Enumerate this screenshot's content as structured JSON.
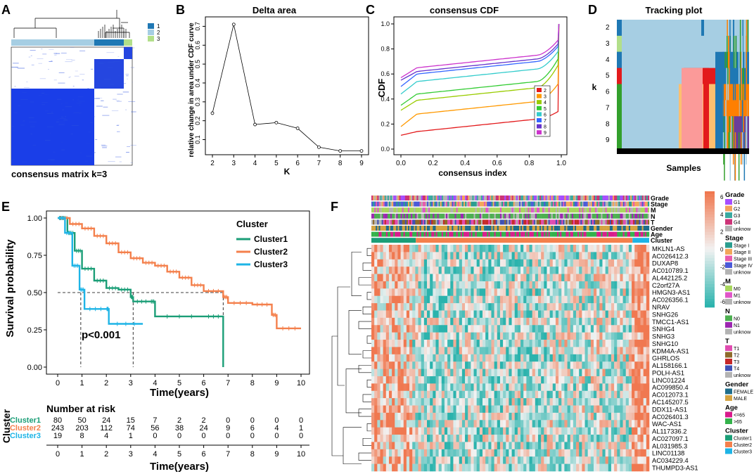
{
  "panel_labels": [
    "A",
    "B",
    "C",
    "D",
    "E",
    "F"
  ],
  "colors": {
    "k1": "#1f78b4",
    "k2": "#a6cee3",
    "k3": "#b2df8a",
    "c1": "#1b9e77",
    "c2": "#f4804c",
    "c3": "#1eb4e6",
    "heat_low": "#2bb3ad",
    "heat_mid": "#f2f2f2",
    "heat_high": "#f07850"
  },
  "panelA": {
    "caption": "consensus matrix k=3",
    "legend": [
      "1",
      "2",
      "3"
    ]
  },
  "chart_data": [
    {
      "id": "B",
      "type": "line",
      "title": "Delta area",
      "xlabel": "K",
      "ylabel": "relative change in area under CDF curve",
      "x": [
        2,
        3,
        4,
        5,
        6,
        7,
        8,
        9
      ],
      "y": [
        0.24,
        0.71,
        0.18,
        0.19,
        0.16,
        0.06,
        0.04,
        0.04
      ],
      "xticks": [
        "2",
        "3",
        "4",
        "5",
        "6",
        "7",
        "8",
        "9"
      ],
      "yticks": [
        "0.1",
        "0.2",
        "0.3",
        "0.4",
        "0.5",
        "0.6",
        "0.7"
      ],
      "ylim": [
        0.02,
        0.75
      ]
    },
    {
      "id": "C",
      "type": "line",
      "title": "consensus CDF",
      "xlabel": "consensus index",
      "ylabel": "CDF",
      "xticks": [
        "0.0",
        "0.2",
        "0.4",
        "0.6",
        "0.8",
        "1.0"
      ],
      "yticks": [
        "0.0",
        "0.2",
        "0.4",
        "0.6",
        "0.8",
        "1.0"
      ],
      "legend": [
        "2",
        "3",
        "4",
        "5",
        "6",
        "7",
        "8",
        "9"
      ],
      "series": [
        {
          "name": "2",
          "color": "#e31a1c",
          "start": 0.11,
          "mid": 0.2,
          "end": 0.3
        },
        {
          "name": "3",
          "color": "#ff9900",
          "start": 0.18,
          "mid": 0.34,
          "end": 0.52
        },
        {
          "name": "4",
          "color": "#99cc00",
          "start": 0.31,
          "mid": 0.45,
          "end": 0.67
        },
        {
          "name": "5",
          "color": "#33cc33",
          "start": 0.35,
          "mid": 0.5,
          "end": 0.72
        },
        {
          "name": "6",
          "color": "#33cccc",
          "start": 0.44,
          "mid": 0.6,
          "end": 0.78
        },
        {
          "name": "7",
          "color": "#3366ff",
          "start": 0.5,
          "mid": 0.66,
          "end": 0.82
        },
        {
          "name": "8",
          "color": "#6633cc",
          "start": 0.55,
          "mid": 0.68,
          "end": 0.84
        },
        {
          "name": "9",
          "color": "#cc33cc",
          "start": 0.57,
          "mid": 0.71,
          "end": 0.87
        }
      ]
    },
    {
      "id": "D",
      "type": "heatmap",
      "title": "Tracking plot",
      "xlabel": "Samples",
      "ylabel": "k",
      "rows": [
        "2",
        "3",
        "4",
        "5",
        "6",
        "7",
        "8",
        "9"
      ]
    },
    {
      "id": "E",
      "type": "line",
      "title": "",
      "xlabel": "Time(years)",
      "ylabel": "Survival probability",
      "xticks": [
        "0",
        "1",
        "2",
        "3",
        "4",
        "5",
        "6",
        "7",
        "8",
        "9",
        "10"
      ],
      "yticks": [
        "0.00",
        "0.25",
        "0.50",
        "0.75",
        "1.00"
      ],
      "annotation": "p<0.001",
      "legend_title": "Cluster",
      "series": [
        {
          "name": "Cluster1",
          "color": "#1b9e77",
          "points": [
            [
              0,
              1
            ],
            [
              0.4,
              0.9
            ],
            [
              0.7,
              0.78
            ],
            [
              1,
              0.66
            ],
            [
              1.5,
              0.58
            ],
            [
              2,
              0.53
            ],
            [
              2.5,
              0.52
            ],
            [
              3,
              0.47
            ],
            [
              3.1,
              0.44
            ],
            [
              3.8,
              0.44
            ],
            [
              4,
              0.34
            ],
            [
              6,
              0.34
            ],
            [
              6.8,
              0.33
            ],
            [
              6.8,
              0
            ]
          ]
        },
        {
          "name": "Cluster2",
          "color": "#f4804c",
          "points": [
            [
              0,
              1
            ],
            [
              0.5,
              0.96
            ],
            [
              1,
              0.93
            ],
            [
              1.5,
              0.88
            ],
            [
              2,
              0.83
            ],
            [
              2.5,
              0.77
            ],
            [
              3,
              0.73
            ],
            [
              3.5,
              0.7
            ],
            [
              4,
              0.68
            ],
            [
              4.5,
              0.64
            ],
            [
              5,
              0.6
            ],
            [
              5.5,
              0.55
            ],
            [
              6,
              0.51
            ],
            [
              6.8,
              0.47
            ],
            [
              7,
              0.43
            ],
            [
              8,
              0.42
            ],
            [
              8.8,
              0.35
            ],
            [
              9,
              0.26
            ],
            [
              10,
              0.26
            ]
          ]
        },
        {
          "name": "Cluster3",
          "color": "#1eb4e6",
          "points": [
            [
              0,
              1
            ],
            [
              0.3,
              0.9
            ],
            [
              0.6,
              0.68
            ],
            [
              0.9,
              0.52
            ],
            [
              1.1,
              0.39
            ],
            [
              2,
              0.39
            ],
            [
              2.1,
              0.29
            ],
            [
              3.5,
              0.29
            ]
          ]
        }
      ],
      "risk_table": {
        "title": "Number at risk",
        "side_label": "Cluster",
        "xlabel": "Time(years)",
        "rows": [
          {
            "name": "Cluster1",
            "values": [
              "80",
              "50",
              "24",
              "15",
              "7",
              "2",
              "2",
              "0",
              "0",
              "0",
              "0"
            ]
          },
          {
            "name": "Cluster2",
            "values": [
              "243",
              "203",
              "112",
              "74",
              "56",
              "38",
              "24",
              "9",
              "6",
              "4",
              "1"
            ]
          },
          {
            "name": "Cluster3",
            "values": [
              "19",
              "8",
              "4",
              "1",
              "0",
              "0",
              "0",
              "0",
              "0",
              "0",
              "0"
            ]
          }
        ]
      }
    },
    {
      "id": "F",
      "type": "heatmap",
      "annotations": [
        "Grade",
        "Stage",
        "M",
        "N",
        "T",
        "Gender",
        "Age",
        "Cluster"
      ],
      "genes": [
        "MKLN1-AS",
        "AC026412.3",
        "DUXAP8",
        "AC010789.1",
        "AL442125.2",
        "C2orf27A",
        "HMGN3-AS1",
        "AC026356.1",
        "NRAV",
        "SNHG26",
        "TMCC1-AS1",
        "SNHG4",
        "SNHG3",
        "SNHG10",
        "KDM4A-AS1",
        "GHRLOS",
        "AL158166.1",
        "POLH-AS1",
        "LINC01224",
        "AC099850.4",
        "AC012073.1",
        "AC145207.5",
        "DDX11-AS1",
        "AC026401.3",
        "WAC-AS1",
        "AL117336.2",
        "AC027097.1",
        "AL031985.3",
        "LINC01138",
        "AC034229.4",
        "THUMPD3-AS1"
      ],
      "colorbar": [
        "6",
        "4",
        "2",
        "0",
        "-2",
        "-4",
        "-6"
      ],
      "legends": [
        {
          "title": "Grade",
          "items": [
            {
              "label": "G1",
              "color": "#a64dff"
            },
            {
              "label": "G2",
              "color": "#f4a15d"
            },
            {
              "label": "G3",
              "color": "#3aa9a0"
            },
            {
              "label": "G4",
              "color": "#cc3377"
            },
            {
              "label": "unknow",
              "color": "#b3b3b3"
            }
          ]
        },
        {
          "title": "Stage",
          "items": [
            {
              "label": "Stage I",
              "color": "#2a9d8f"
            },
            {
              "label": "Stage II",
              "color": "#f2a65a"
            },
            {
              "label": "Stage III",
              "color": "#e85aad"
            },
            {
              "label": "Stage IV",
              "color": "#4a5ad8"
            },
            {
              "label": "unknow",
              "color": "#b3b3b3"
            }
          ]
        },
        {
          "title": "M",
          "items": [
            {
              "label": "M0",
              "color": "#a8d65c"
            },
            {
              "label": "M1",
              "color": "#e056c8"
            },
            {
              "label": "unknow",
              "color": "#b3b3b3"
            }
          ]
        },
        {
          "title": "N",
          "items": [
            {
              "label": "N0",
              "color": "#4caf50"
            },
            {
              "label": "N1",
              "color": "#9c27b0"
            },
            {
              "label": "unknow",
              "color": "#b3b3b3"
            }
          ]
        },
        {
          "title": "T",
          "items": [
            {
              "label": "T1",
              "color": "#e04cb0"
            },
            {
              "label": "T2",
              "color": "#8e6a2a"
            },
            {
              "label": "T3",
              "color": "#c62828"
            },
            {
              "label": "T4",
              "color": "#3f51b5"
            },
            {
              "label": "unknow",
              "color": "#b3b3b3"
            }
          ]
        },
        {
          "title": "Gender",
          "items": [
            {
              "label": "FEMALE",
              "color": "#1f6e8c"
            },
            {
              "label": "MALE",
              "color": "#d4a340"
            }
          ]
        },
        {
          "title": "Age",
          "items": [
            {
              "label": "<=65",
              "color": "#d81b8c"
            },
            {
              "label": ">65",
              "color": "#33b24a"
            }
          ]
        },
        {
          "title": "Cluster",
          "items": [
            {
              "label": "Cluster1",
              "color": "#1b9e77"
            },
            {
              "label": "Cluster2",
              "color": "#f4804c"
            },
            {
              "label": "Cluster3",
              "color": "#1eb4e6"
            }
          ]
        }
      ]
    }
  ]
}
